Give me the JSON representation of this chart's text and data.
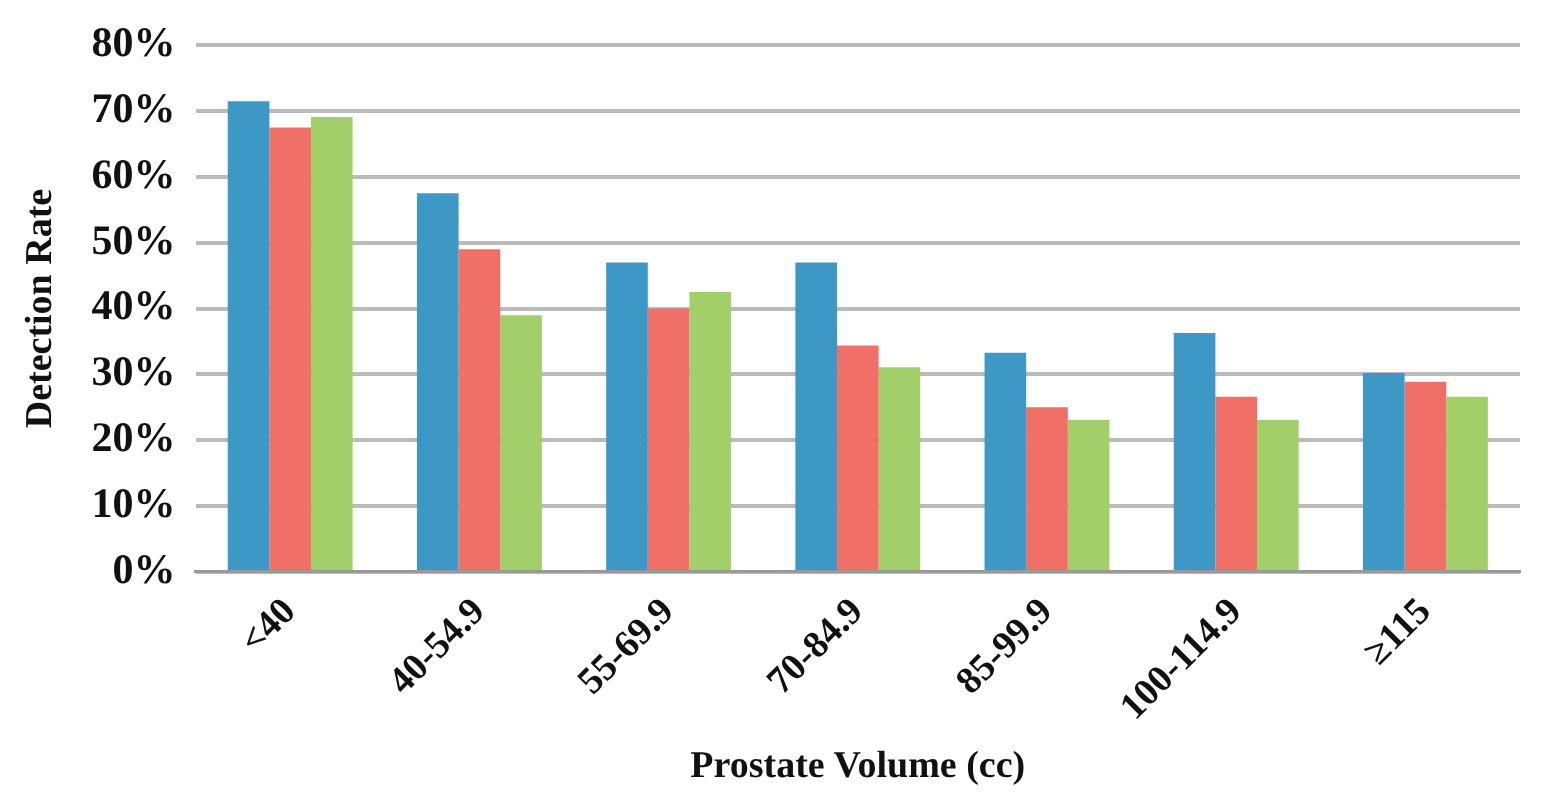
{
  "chart_data": {
    "type": "bar",
    "xlabel": "Prostate Volume (cc)",
    "ylabel": "Detection Rate",
    "categories": [
      "<40",
      "40-54.9",
      "55-69.9",
      "70-84.9",
      "85-99.9",
      "100-114.9",
      "≥115"
    ],
    "series": [
      {
        "color": "#3d98c6",
        "values": [
          71.5,
          57.5,
          47,
          47,
          33.3,
          36.3,
          30.2
        ]
      },
      {
        "color": "#f07067",
        "values": [
          67.5,
          49,
          40,
          34.4,
          25,
          26.6,
          28.9
        ]
      },
      {
        "color": "#a3cf6a",
        "values": [
          69.1,
          39,
          42.5,
          31.1,
          23.1,
          23.1,
          26.6
        ]
      }
    ],
    "ylim": [
      0,
      80
    ],
    "yticks": [
      {
        "value": 0,
        "label": "0%"
      },
      {
        "value": 10,
        "label": "10%"
      },
      {
        "value": 20,
        "label": "20%"
      },
      {
        "value": 30,
        "label": "30%"
      },
      {
        "value": 40,
        "label": "40%"
      },
      {
        "value": 50,
        "label": "50%"
      },
      {
        "value": 60,
        "label": "60%"
      },
      {
        "value": 70,
        "label": "70%"
      },
      {
        "value": 80,
        "label": "80%"
      }
    ],
    "grid": "y",
    "legend": false
  }
}
